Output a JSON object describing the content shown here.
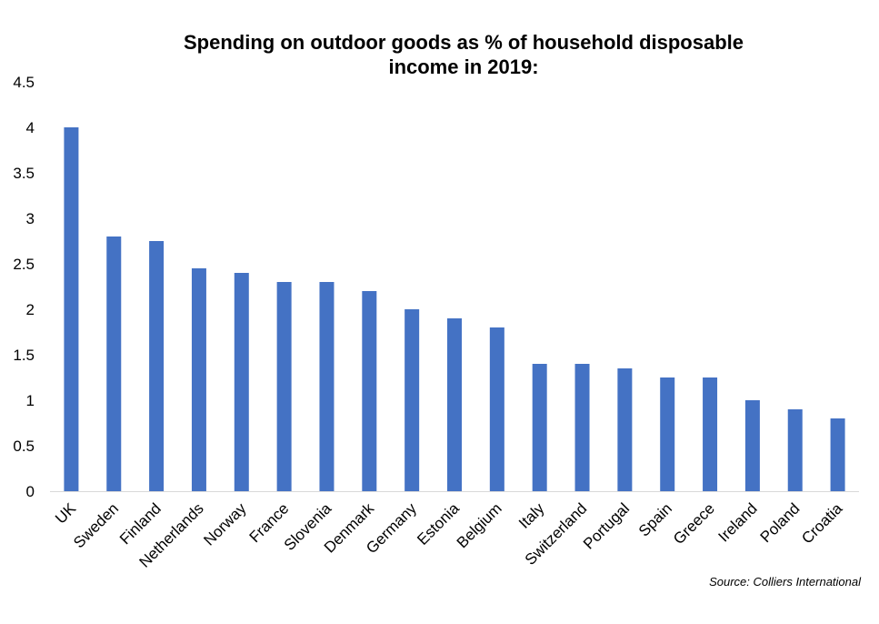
{
  "chart_data": {
    "type": "bar",
    "title": "Spending on outdoor goods as % of household disposable income in 2019:",
    "title_lines": [
      "Spending on outdoor goods as % of household disposable",
      "income in 2019:"
    ],
    "xlabel": "",
    "ylabel": "",
    "ylim": [
      0,
      4.5
    ],
    "yticks": [
      "0",
      "0.5",
      "1",
      "1.5",
      "2",
      "2.5",
      "3",
      "3.5",
      "4",
      "4.5"
    ],
    "grid": false,
    "legend": "none",
    "bar_color": "#4472C4",
    "categories": [
      "UK",
      "Sweden",
      "Finland",
      "Netherlands",
      "Norway",
      "France",
      "Slovenia",
      "Denmark",
      "Germany",
      "Estonia",
      "Belgium",
      "Italy",
      "Switzerland",
      "Portugal",
      "Spain",
      "Greece",
      "Ireland",
      "Poland",
      "Croatia"
    ],
    "values": [
      4.0,
      2.8,
      2.75,
      2.45,
      2.4,
      2.3,
      2.3,
      2.2,
      2.0,
      1.9,
      1.8,
      1.4,
      1.4,
      1.35,
      1.25,
      1.25,
      1.0,
      0.9,
      0.8
    ],
    "source": "Source: Colliers International"
  }
}
